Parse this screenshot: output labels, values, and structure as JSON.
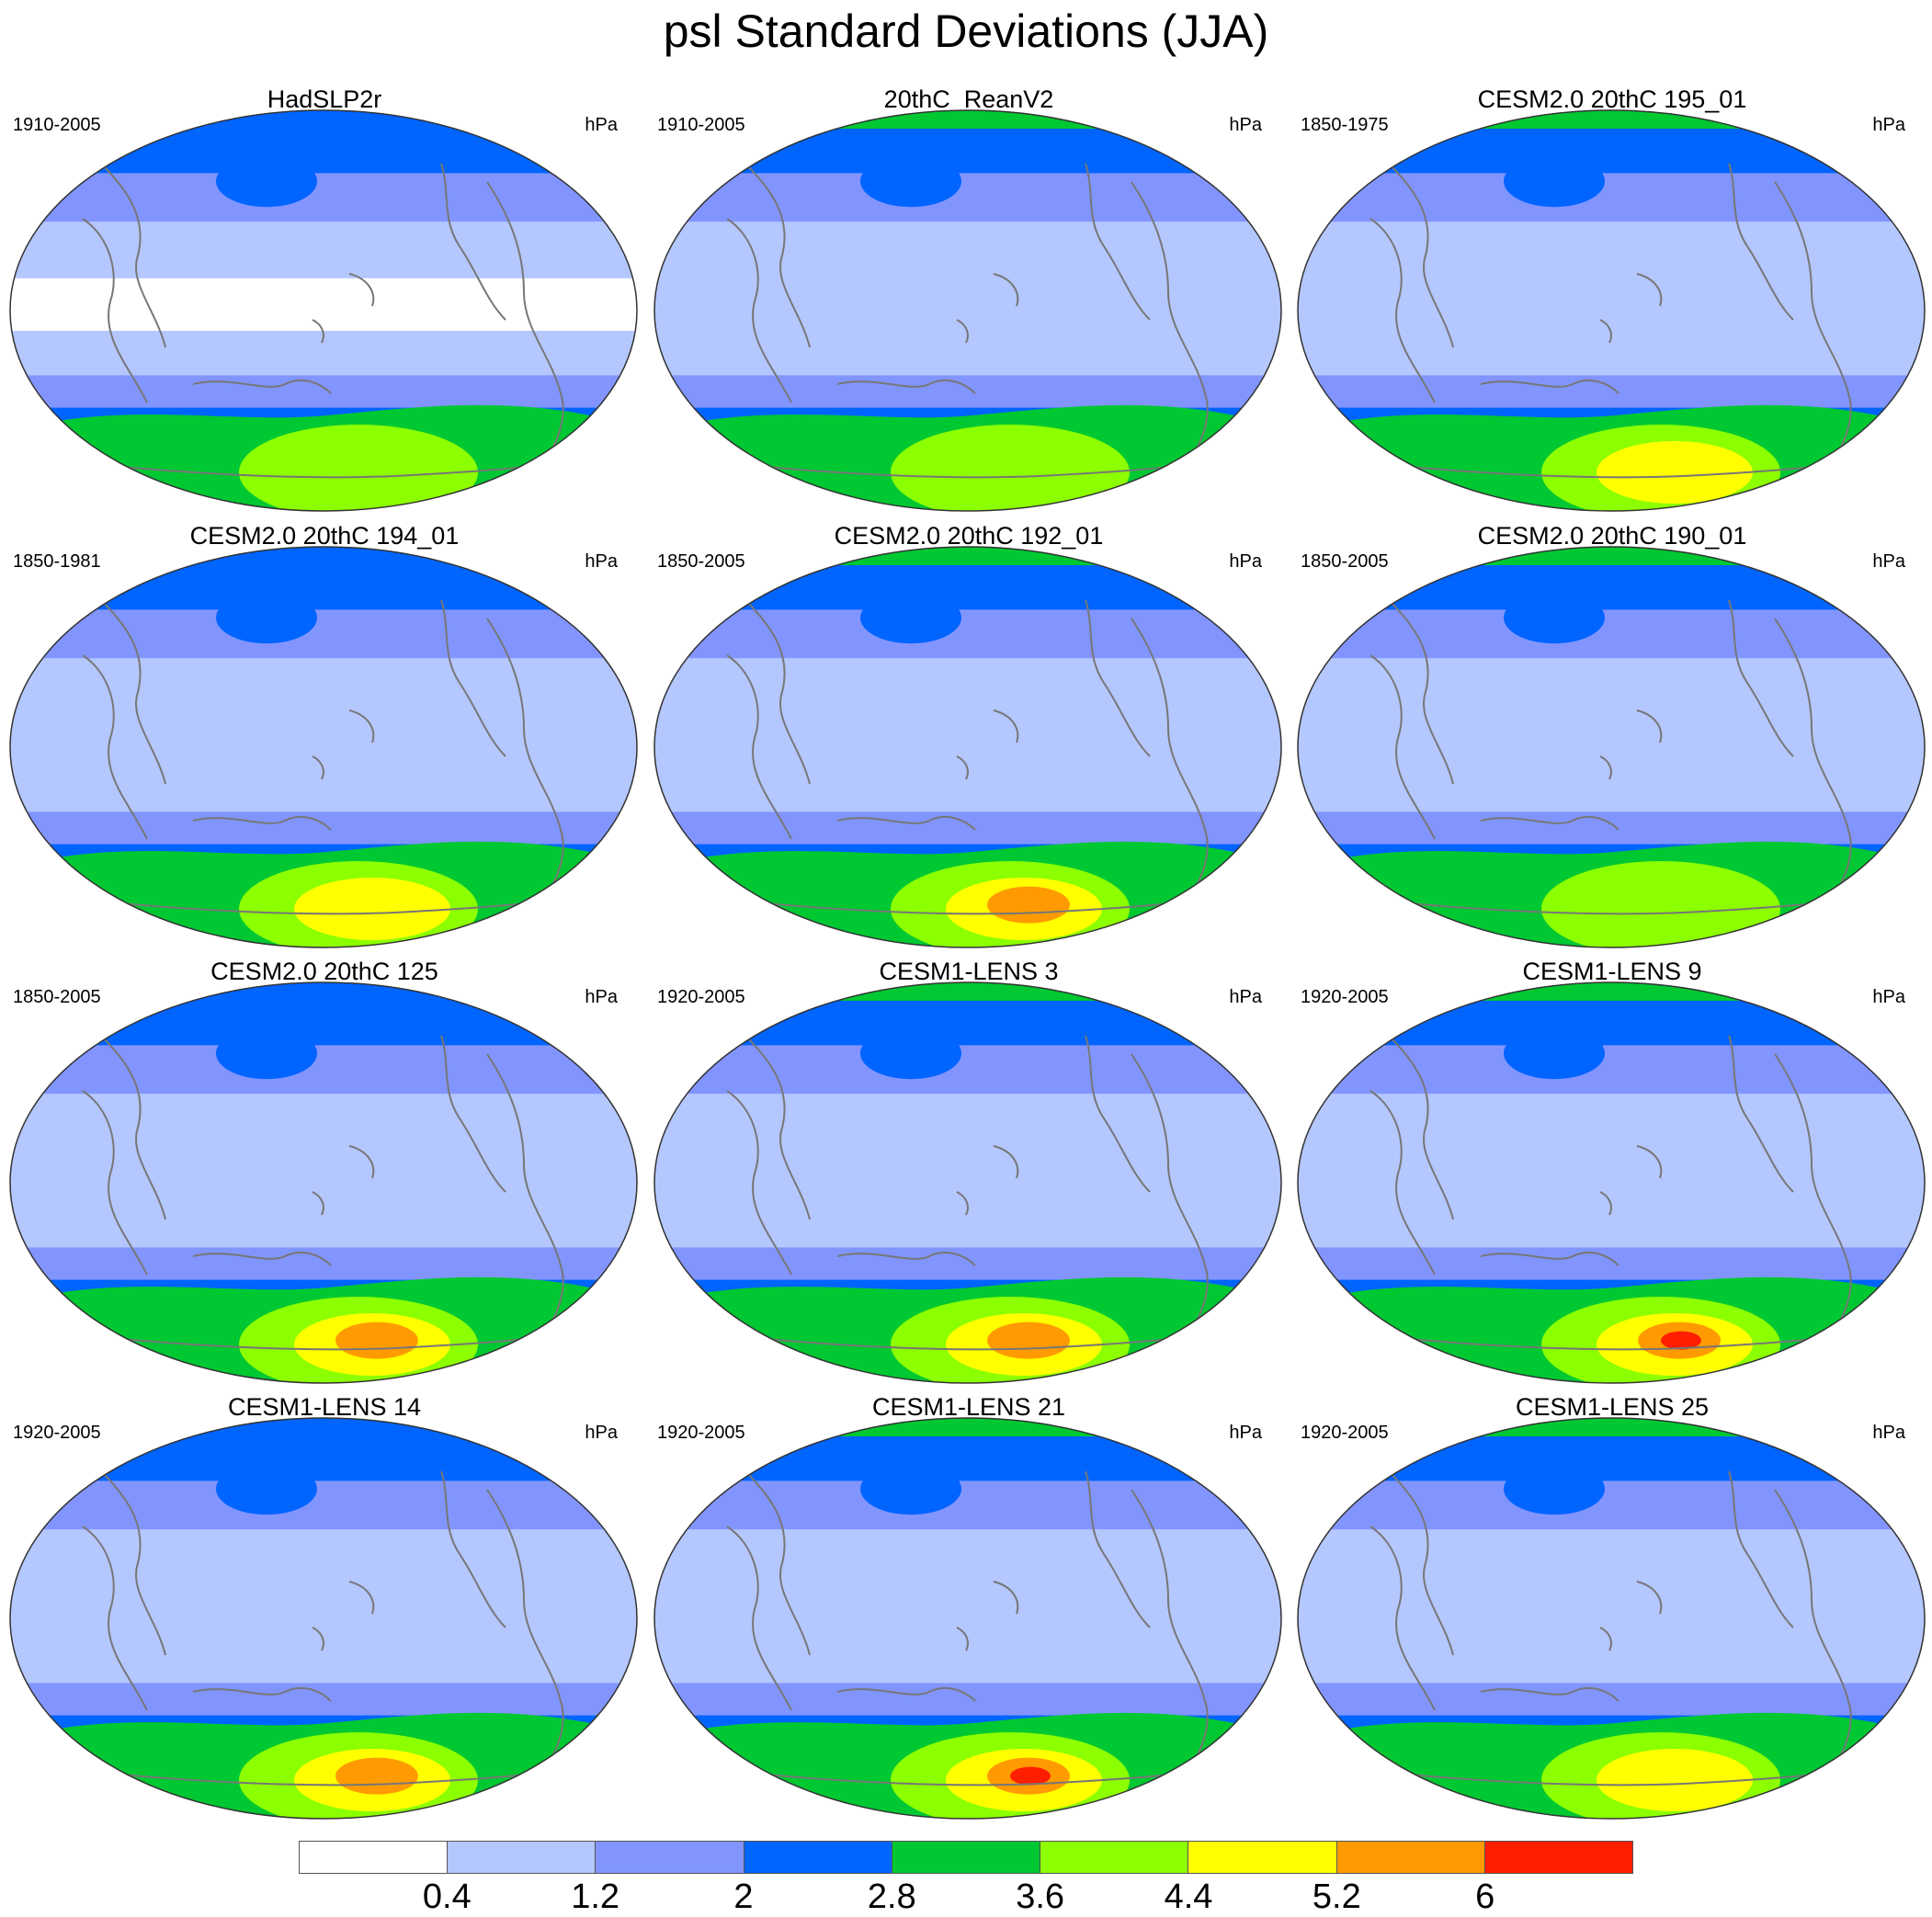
{
  "title": "psl Standard Deviations (JJA)",
  "colorbar": {
    "colors": [
      "#ffffff",
      "#b4c7ff",
      "#8295ff",
      "#0064ff",
      "#00c832",
      "#8cff00",
      "#ffff00",
      "#ff9b00",
      "#ff1e00"
    ],
    "labels": [
      "0.4",
      "1.2",
      "2",
      "2.8",
      "3.6",
      "4.4",
      "5.2",
      "6"
    ]
  },
  "panels": [
    {
      "title": "HadSLP2r",
      "years": "1910-2005",
      "units": "hPa"
    },
    {
      "title": "20thC_ReanV2",
      "years": "1910-2005",
      "units": "hPa"
    },
    {
      "title": "CESM2.0 20thC 195_01",
      "years": "1850-1975",
      "units": "hPa"
    },
    {
      "title": "CESM2.0 20thC 194_01",
      "years": "1850-1981",
      "units": "hPa"
    },
    {
      "title": "CESM2.0 20thC 192_01",
      "years": "1850-2005",
      "units": "hPa"
    },
    {
      "title": "CESM2.0 20thC 190_01",
      "years": "1850-2005",
      "units": "hPa"
    },
    {
      "title": "CESM2.0 20thC 125",
      "years": "1850-2005",
      "units": "hPa"
    },
    {
      "title": "CESM1-LENS 3",
      "years": "1920-2005",
      "units": "hPa"
    },
    {
      "title": "CESM1-LENS 9",
      "years": "1920-2005",
      "units": "hPa"
    },
    {
      "title": "CESM1-LENS 14",
      "years": "1920-2005",
      "units": "hPa"
    },
    {
      "title": "CESM1-LENS 21",
      "years": "1920-2005",
      "units": "hPa"
    },
    {
      "title": "CESM1-LENS 25",
      "years": "1920-2005",
      "units": "hPa"
    }
  ]
}
